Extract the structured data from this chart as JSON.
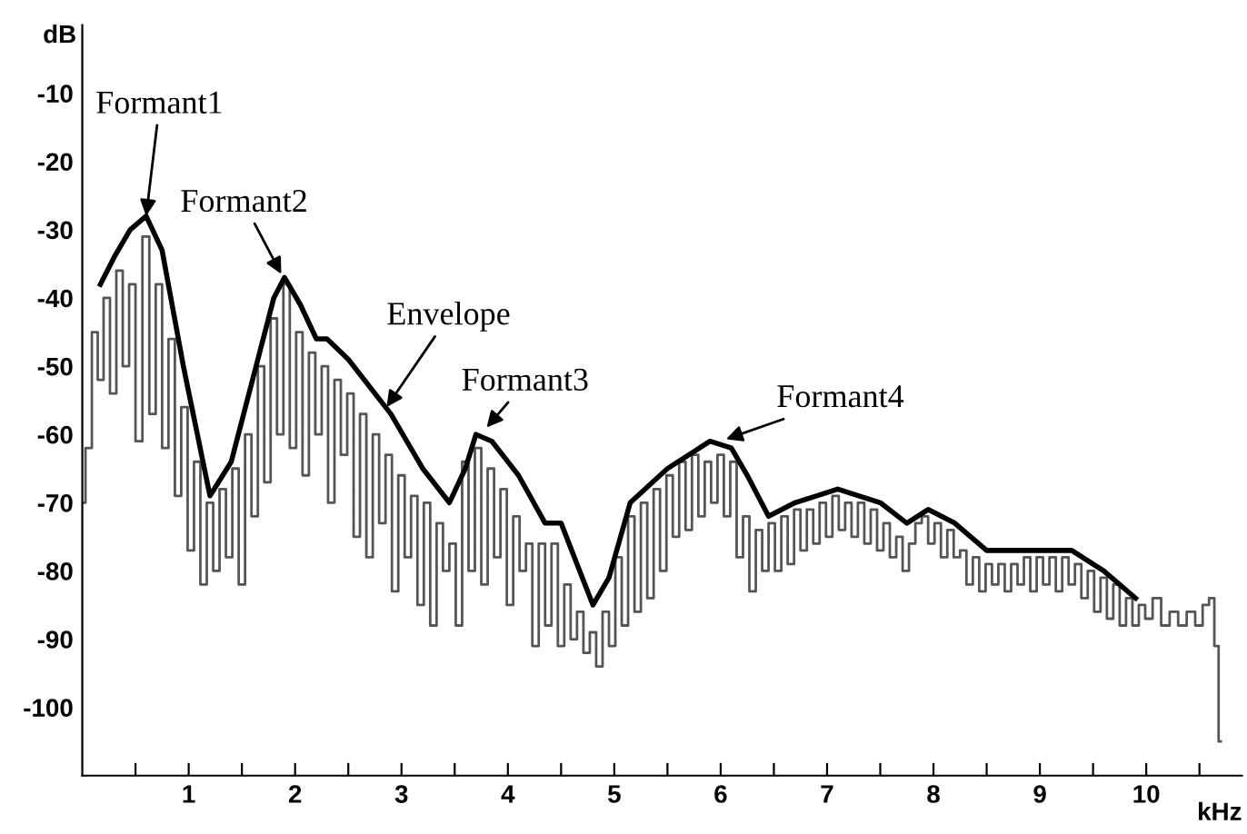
{
  "chart_data": {
    "type": "line",
    "xlabel": "kHz",
    "ylabel": "dB",
    "xlim": [
      0,
      10.9
    ],
    "ylim": [
      -110,
      0
    ],
    "xticks": [
      {
        "value": 0.5,
        "label": null
      },
      1,
      {
        "value": 1.5,
        "label": null
      },
      2,
      {
        "value": 2.5,
        "label": null
      },
      3,
      {
        "value": 3.5,
        "label": null
      },
      4,
      {
        "value": 4.5,
        "label": null
      },
      5,
      {
        "value": 5.5,
        "label": null
      },
      6,
      {
        "value": 6.5,
        "label": null
      },
      7,
      {
        "value": 7.5,
        "label": null
      },
      8,
      {
        "value": 8.5,
        "label": null
      },
      9,
      {
        "value": 9.5,
        "label": null
      },
      10,
      {
        "value": 10.5,
        "label": null
      }
    ],
    "yticks": [
      -10,
      -20,
      -30,
      -40,
      -50,
      -60,
      -70,
      -80,
      -90,
      -100
    ],
    "grid": false,
    "marker": "none",
    "line_style": "solid",
    "series": [
      {
        "color": "#555555",
        "type": "step",
        "x": [
          0.0,
          0.06,
          0.12,
          0.17,
          0.23,
          0.29,
          0.35,
          0.41,
          0.47,
          0.53,
          0.6,
          0.66,
          0.72,
          0.78,
          0.84,
          0.9,
          0.96,
          1.02,
          1.08,
          1.14,
          1.2,
          1.26,
          1.32,
          1.38,
          1.44,
          1.5,
          1.56,
          1.62,
          1.68,
          1.74,
          1.8,
          1.86,
          1.92,
          1.98,
          2.04,
          2.1,
          2.16,
          2.22,
          2.28,
          2.34,
          2.4,
          2.46,
          2.52,
          2.58,
          2.64,
          2.7,
          2.76,
          2.82,
          2.88,
          2.94,
          3.0,
          3.06,
          3.12,
          3.18,
          3.24,
          3.3,
          3.36,
          3.42,
          3.48,
          3.54,
          3.6,
          3.66,
          3.72,
          3.78,
          3.84,
          3.9,
          3.96,
          4.02,
          4.08,
          4.14,
          4.2,
          4.26,
          4.32,
          4.38,
          4.44,
          4.5,
          4.56,
          4.62,
          4.68,
          4.74,
          4.8,
          4.86,
          4.92,
          4.98,
          5.04,
          5.1,
          5.16,
          5.22,
          5.28,
          5.34,
          5.4,
          5.46,
          5.52,
          5.58,
          5.64,
          5.7,
          5.76,
          5.82,
          5.88,
          5.94,
          6.0,
          6.06,
          6.12,
          6.18,
          6.24,
          6.3,
          6.36,
          6.42,
          6.48,
          6.54,
          6.6,
          6.66,
          6.72,
          6.78,
          6.84,
          6.9,
          6.96,
          7.02,
          7.08,
          7.14,
          7.2,
          7.26,
          7.32,
          7.38,
          7.44,
          7.5,
          7.56,
          7.62,
          7.68,
          7.74,
          7.8,
          7.86,
          7.92,
          7.98,
          8.04,
          8.1,
          8.16,
          8.22,
          8.28,
          8.34,
          8.4,
          8.46,
          8.52,
          8.58,
          8.64,
          8.7,
          8.76,
          8.82,
          8.88,
          8.94,
          9.0,
          9.06,
          9.12,
          9.18,
          9.24,
          9.3,
          9.36,
          9.42,
          9.48,
          9.54,
          9.6,
          9.66,
          9.72,
          9.78,
          9.84,
          9.9,
          9.96,
          10.02,
          10.1,
          10.18,
          10.26,
          10.34,
          10.42,
          10.5,
          10.56,
          10.62,
          10.66,
          10.7
        ],
        "values": [
          -70,
          -62,
          -45,
          -52,
          -40,
          -54,
          -36,
          -50,
          -38,
          -61,
          -31,
          -57,
          -38,
          -62,
          -46,
          -69,
          -56,
          -77,
          -64,
          -82,
          -70,
          -80,
          -68,
          -78,
          -65,
          -82,
          -60,
          -72,
          -50,
          -67,
          -43,
          -60,
          -38,
          -62,
          -45,
          -66,
          -48,
          -60,
          -50,
          -70,
          -52,
          -63,
          -54,
          -75,
          -57,
          -78,
          -60,
          -73,
          -63,
          -83,
          -66,
          -78,
          -69,
          -85,
          -70,
          -88,
          -73,
          -80,
          -76,
          -88,
          -64,
          -80,
          -62,
          -82,
          -65,
          -78,
          -68,
          -85,
          -72,
          -80,
          -76,
          -91,
          -76,
          -88,
          -76,
          -91,
          -82,
          -90,
          -86,
          -92,
          -89,
          -94,
          -86,
          -91,
          -78,
          -88,
          -72,
          -86,
          -70,
          -84,
          -68,
          -80,
          -66,
          -75,
          -64,
          -74,
          -63,
          -72,
          -64,
          -70,
          -63,
          -72,
          -64,
          -78,
          -72,
          -83,
          -74,
          -80,
          -73,
          -80,
          -72,
          -79,
          -71,
          -77,
          -71,
          -76,
          -70,
          -75,
          -69,
          -74,
          -70,
          -75,
          -70,
          -76,
          -71,
          -77,
          -73,
          -78,
          -75,
          -80,
          -76,
          -73,
          -72,
          -76,
          -73,
          -78,
          -74,
          -78,
          -77,
          -82,
          -78,
          -83,
          -79,
          -82,
          -79,
          -83,
          -79,
          -82,
          -78,
          -83,
          -78,
          -82,
          -78,
          -83,
          -78,
          -82,
          -79,
          -84,
          -80,
          -86,
          -81,
          -87,
          -82,
          -88,
          -84,
          -88,
          -85,
          -87,
          -84,
          -88,
          -86,
          -88,
          -86,
          -88,
          -85,
          -84,
          -91,
          -105
        ]
      },
      {
        "color": "#000000",
        "x": [
          0.17,
          0.3,
          0.45,
          0.6,
          0.75,
          0.95,
          1.2,
          1.4,
          1.6,
          1.8,
          1.9,
          2.05,
          2.2,
          2.3,
          2.5,
          2.9,
          3.2,
          3.45,
          3.6,
          3.7,
          3.85,
          4.1,
          4.35,
          4.5,
          4.65,
          4.8,
          4.95,
          5.15,
          5.5,
          5.9,
          6.1,
          6.25,
          6.45,
          6.7,
          7.1,
          7.5,
          7.75,
          7.95,
          8.2,
          8.5,
          9.0,
          9.3,
          9.6,
          9.9
        ],
        "values": [
          -38,
          -34,
          -30,
          -28,
          -33,
          -50,
          -69,
          -64,
          -52,
          -40,
          -37,
          -41,
          -46,
          -46,
          -49,
          -57,
          -65,
          -70,
          -65,
          -60,
          -61,
          -66,
          -73,
          -73,
          -79,
          -85,
          -81,
          -70,
          -65,
          -61,
          -62,
          -66,
          -72,
          -70,
          -68,
          -70,
          -73,
          -71,
          -73,
          -77,
          -77,
          -77,
          -80,
          -84
        ]
      }
    ],
    "annotations": [
      {
        "text": "Formant1",
        "x": 0.6,
        "y": -28
      },
      {
        "text": "Formant2",
        "x": 1.87,
        "y": -36.5
      },
      {
        "text": "Envelope",
        "x": 2.86,
        "y": -56
      },
      {
        "text": "Formant3",
        "x": 3.8,
        "y": -59
      },
      {
        "text": "Formant4",
        "x": 6.05,
        "y": -60.7
      }
    ]
  }
}
